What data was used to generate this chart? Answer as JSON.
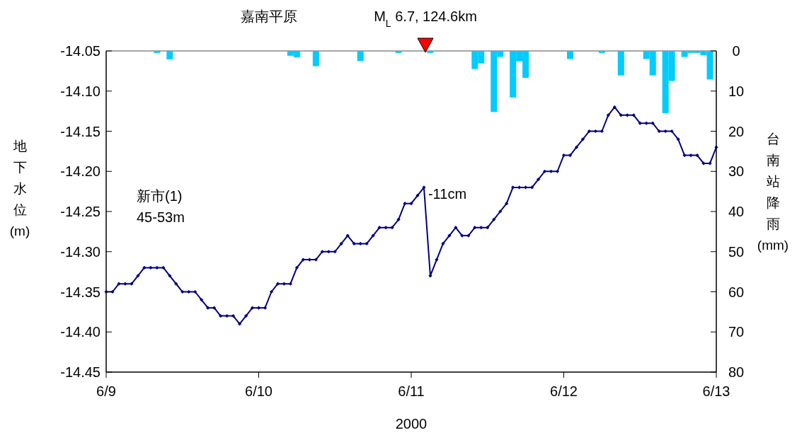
{
  "chart_data": {
    "type": "line",
    "title": "嘉南平原",
    "xlabel": "2000",
    "ylabel": "地下水位(m)",
    "y2label": "台南站降雨(mm)",
    "xlim": [
      "2000-06-09",
      "2000-06-13"
    ],
    "xticks": [
      {
        "value": "2000-06-09",
        "label": "6/9"
      },
      {
        "value": "2000-06-10",
        "label": "6/10"
      },
      {
        "value": "2000-06-11",
        "label": "6/11"
      },
      {
        "value": "2000-06-12",
        "label": "6/12"
      },
      {
        "value": "2000-06-13",
        "label": "6/13"
      }
    ],
    "ylim": [
      -14.45,
      -14.05
    ],
    "yticks": [
      {
        "value": -14.45,
        "label": "-14.45"
      },
      {
        "value": -14.4,
        "label": "-14.40"
      },
      {
        "value": -14.35,
        "label": "-14.35"
      },
      {
        "value": -14.3,
        "label": "-14.30"
      },
      {
        "value": -14.25,
        "label": "-14.25"
      },
      {
        "value": -14.2,
        "label": "-14.20"
      },
      {
        "value": -14.15,
        "label": "-14.15"
      },
      {
        "value": -14.1,
        "label": "-14.10"
      },
      {
        "value": -14.05,
        "label": "-14.05"
      }
    ],
    "y2lim": [
      80,
      0
    ],
    "y2ticks": [
      0,
      10,
      20,
      30,
      40,
      50,
      60,
      70,
      80
    ],
    "marker": "diamond",
    "grid": false,
    "annotations": [
      "M$_{L}$ 6.7, 124.6km",
      {
        "text": "-11cm",
        "x": "2000-06-11T02:00",
        "y": -14.22
      },
      "新市(1)",
      "45-53m"
    ],
    "series": [
      {
        "type": "bar",
        "axis": "y2",
        "color": "#00ccff",
        "x": [
          "2000-06-09T08:00",
          "2000-06-09T10:00",
          "2000-06-10T05:00",
          "2000-06-10T06:00",
          "2000-06-10T09:00",
          "2000-06-10T16:00",
          "2000-06-10T22:00",
          "2000-06-11T03:00",
          "2000-06-11T10:00",
          "2000-06-11T11:00",
          "2000-06-11T13:00",
          "2000-06-11T14:00",
          "2000-06-11T16:00",
          "2000-06-11T17:00",
          "2000-06-11T18:00",
          "2000-06-12T01:00",
          "2000-06-12T06:00",
          "2000-06-12T09:00",
          "2000-06-12T13:00",
          "2000-06-12T14:00",
          "2000-06-12T16:00",
          "2000-06-12T17:00",
          "2000-06-12T19:00",
          "2000-06-12T20:00",
          "2000-06-12T21:00",
          "2000-06-12T22:00",
          "2000-06-12T23:00"
        ],
        "values": [
          0.5,
          2.1,
          1.2,
          1.6,
          3.8,
          2.5,
          0.5,
          0.5,
          4.5,
          3.1,
          15.2,
          1.5,
          11.6,
          2.6,
          6.7,
          2.0,
          0.5,
          6.1,
          2.0,
          6.1,
          15.5,
          7.5,
          1.5,
          0.5,
          0.5,
          1.1,
          7.1
        ]
      },
      {
        "color": "#000080",
        "x": [
          "2000-06-09T00:00",
          "2000-06-09T01:00",
          "2000-06-09T02:00",
          "2000-06-09T03:00",
          "2000-06-09T04:00",
          "2000-06-09T05:00",
          "2000-06-09T06:00",
          "2000-06-09T07:00",
          "2000-06-09T08:00",
          "2000-06-09T09:00",
          "2000-06-09T10:00",
          "2000-06-09T11:00",
          "2000-06-09T12:00",
          "2000-06-09T13:00",
          "2000-06-09T14:00",
          "2000-06-09T15:00",
          "2000-06-09T16:00",
          "2000-06-09T17:00",
          "2000-06-09T18:00",
          "2000-06-09T19:00",
          "2000-06-09T20:00",
          "2000-06-09T21:00",
          "2000-06-09T22:00",
          "2000-06-09T23:00",
          "2000-06-10T00:00",
          "2000-06-10T01:00",
          "2000-06-10T02:00",
          "2000-06-10T03:00",
          "2000-06-10T04:00",
          "2000-06-10T05:00",
          "2000-06-10T06:00",
          "2000-06-10T07:00",
          "2000-06-10T08:00",
          "2000-06-10T09:00",
          "2000-06-10T10:00",
          "2000-06-10T11:00",
          "2000-06-10T12:00",
          "2000-06-10T13:00",
          "2000-06-10T14:00",
          "2000-06-10T15:00",
          "2000-06-10T16:00",
          "2000-06-10T17:00",
          "2000-06-10T18:00",
          "2000-06-10T19:00",
          "2000-06-10T20:00",
          "2000-06-10T21:00",
          "2000-06-10T22:00",
          "2000-06-10T23:00",
          "2000-06-11T00:00",
          "2000-06-11T01:00",
          "2000-06-11T02:00",
          "2000-06-11T03:00",
          "2000-06-11T04:00",
          "2000-06-11T05:00",
          "2000-06-11T06:00",
          "2000-06-11T07:00",
          "2000-06-11T08:00",
          "2000-06-11T09:00",
          "2000-06-11T10:00",
          "2000-06-11T11:00",
          "2000-06-11T12:00",
          "2000-06-11T13:00",
          "2000-06-11T14:00",
          "2000-06-11T15:00",
          "2000-06-11T16:00",
          "2000-06-11T17:00",
          "2000-06-11T18:00",
          "2000-06-11T19:00",
          "2000-06-11T20:00",
          "2000-06-11T21:00",
          "2000-06-11T22:00",
          "2000-06-11T23:00",
          "2000-06-12T00:00",
          "2000-06-12T01:00",
          "2000-06-12T02:00",
          "2000-06-12T03:00",
          "2000-06-12T04:00",
          "2000-06-12T05:00",
          "2000-06-12T06:00",
          "2000-06-12T07:00",
          "2000-06-12T08:00",
          "2000-06-12T09:00",
          "2000-06-12T10:00",
          "2000-06-12T11:00",
          "2000-06-12T12:00",
          "2000-06-12T13:00",
          "2000-06-12T14:00",
          "2000-06-12T15:00",
          "2000-06-12T16:00",
          "2000-06-12T17:00",
          "2000-06-12T18:00",
          "2000-06-12T19:00",
          "2000-06-12T20:00",
          "2000-06-12T21:00",
          "2000-06-12T22:00",
          "2000-06-12T23:00",
          "2000-06-13T00:00"
        ],
        "values": [
          -14.35,
          -14.35,
          -14.34,
          -14.34,
          -14.34,
          -14.33,
          -14.32,
          -14.32,
          -14.32,
          -14.32,
          -14.33,
          -14.34,
          -14.35,
          -14.35,
          -14.35,
          -14.36,
          -14.37,
          -14.37,
          -14.38,
          -14.38,
          -14.38,
          -14.39,
          -14.38,
          -14.37,
          -14.37,
          -14.37,
          -14.35,
          -14.34,
          -14.34,
          -14.34,
          -14.32,
          -14.31,
          -14.31,
          -14.31,
          -14.3,
          -14.3,
          -14.3,
          -14.29,
          -14.28,
          -14.29,
          -14.29,
          -14.29,
          -14.28,
          -14.27,
          -14.27,
          -14.27,
          -14.26,
          -14.24,
          -14.24,
          -14.23,
          -14.22,
          -14.33,
          -14.31,
          -14.29,
          -14.28,
          -14.27,
          -14.28,
          -14.28,
          -14.27,
          -14.27,
          -14.27,
          -14.26,
          -14.25,
          -14.24,
          -14.22,
          -14.22,
          -14.22,
          -14.22,
          -14.21,
          -14.2,
          -14.2,
          -14.2,
          -14.18,
          -14.18,
          -14.17,
          -14.16,
          -14.15,
          -14.15,
          -14.15,
          -14.13,
          -14.12,
          -14.13,
          -14.13,
          -14.13,
          -14.14,
          -14.14,
          -14.14,
          -14.15,
          -14.15,
          -14.15,
          -14.16,
          -14.18,
          -14.18,
          -14.18,
          -14.19,
          -14.19,
          -14.17
        ]
      }
    ]
  }
}
